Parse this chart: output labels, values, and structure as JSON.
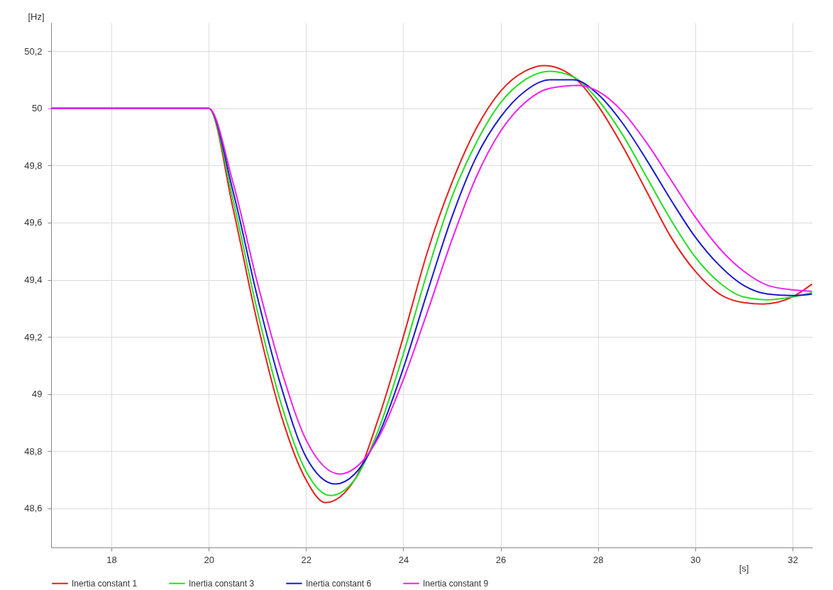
{
  "chart_data": {
    "type": "line",
    "xlabel": "[s]",
    "ylabel": "[Hz]",
    "xlim": [
      16.76,
      32.41
    ],
    "ylim": [
      48.463,
      50.3
    ],
    "xticks": [
      18,
      20,
      22,
      24,
      26,
      28,
      30,
      32
    ],
    "yticks": [
      {
        "value": 48.6,
        "label": "48,6"
      },
      {
        "value": 48.8,
        "label": "48,8"
      },
      49,
      {
        "value": 49.2,
        "label": "49,2"
      },
      {
        "value": 49.4,
        "label": "49,4"
      },
      {
        "value": 49.6,
        "label": "49,6"
      },
      {
        "value": 49.8,
        "label": "49,8"
      },
      50,
      {
        "value": 50.2,
        "label": "50,2"
      }
    ],
    "grid": true,
    "legend": "bottom",
    "marker": "none",
    "line_style": "solid",
    "series": [
      {
        "name": "Inertia constant 1",
        "color": "#e8201c",
        "x": [
          16.76,
          20,
          20.5,
          21,
          21.5,
          22,
          22.4,
          23,
          23.5,
          24,
          24.5,
          25,
          25.5,
          26,
          26.5,
          26.9,
          27.5,
          28,
          28.5,
          29,
          29.5,
          30,
          30.5,
          31,
          31.4,
          32,
          32.4
        ],
        "values": [
          50,
          50,
          49.65,
          49.25,
          48.92,
          48.7,
          48.62,
          48.7,
          48.92,
          49.2,
          49.5,
          49.74,
          49.93,
          50.06,
          50.13,
          50.15,
          50.11,
          50.01,
          49.87,
          49.71,
          49.55,
          49.43,
          49.35,
          49.32,
          49.315,
          49.34,
          49.385
        ]
      },
      {
        "name": "Inertia constant 3",
        "color": "#22e022",
        "x": [
          16.76,
          20,
          20.5,
          21,
          21.5,
          22,
          22.5,
          23,
          23.5,
          24,
          24.5,
          25,
          25.5,
          26,
          26.5,
          27,
          27.5,
          28,
          28.5,
          29,
          29.5,
          30,
          30.5,
          31,
          31.5,
          32,
          32.4
        ],
        "values": [
          50,
          50,
          49.68,
          49.29,
          48.96,
          48.73,
          48.645,
          48.7,
          48.88,
          49.14,
          49.43,
          49.69,
          49.88,
          50.02,
          50.1,
          50.13,
          50.11,
          50.03,
          49.91,
          49.76,
          49.61,
          49.48,
          49.39,
          49.34,
          49.33,
          49.34,
          49.355
        ]
      },
      {
        "name": "Inertia constant 6",
        "color": "#1a1ad0",
        "x": [
          16.76,
          20,
          20.5,
          21,
          21.5,
          22,
          22.6,
          23,
          23.5,
          24,
          24.5,
          25,
          25.5,
          26,
          26.5,
          27,
          27.5,
          28,
          28.5,
          29,
          29.5,
          30,
          30.5,
          31,
          31.5,
          32,
          32.4
        ],
        "values": [
          50,
          50,
          49.71,
          49.34,
          49.02,
          48.78,
          48.685,
          48.72,
          48.86,
          49.09,
          49.36,
          49.62,
          49.83,
          49.97,
          50.06,
          50.1,
          50.1,
          50.05,
          49.95,
          49.82,
          49.68,
          49.55,
          49.45,
          49.38,
          49.35,
          49.345,
          49.35
        ]
      },
      {
        "name": "Inertia constant 9",
        "color": "#f020f0",
        "x": [
          16.76,
          20,
          20.5,
          21,
          21.5,
          22,
          22.7,
          23,
          23.5,
          24,
          24.5,
          25,
          25.5,
          26,
          26.5,
          27,
          27.6,
          28,
          28.5,
          29,
          29.5,
          30,
          30.5,
          31,
          31.5,
          32,
          32.4
        ],
        "values": [
          50,
          50,
          49.74,
          49.39,
          49.08,
          48.84,
          48.72,
          48.74,
          48.85,
          49.05,
          49.29,
          49.54,
          49.76,
          49.92,
          50.02,
          50.07,
          50.08,
          50.06,
          49.99,
          49.88,
          49.75,
          49.62,
          49.51,
          49.43,
          49.38,
          49.365,
          49.36
        ]
      }
    ]
  }
}
